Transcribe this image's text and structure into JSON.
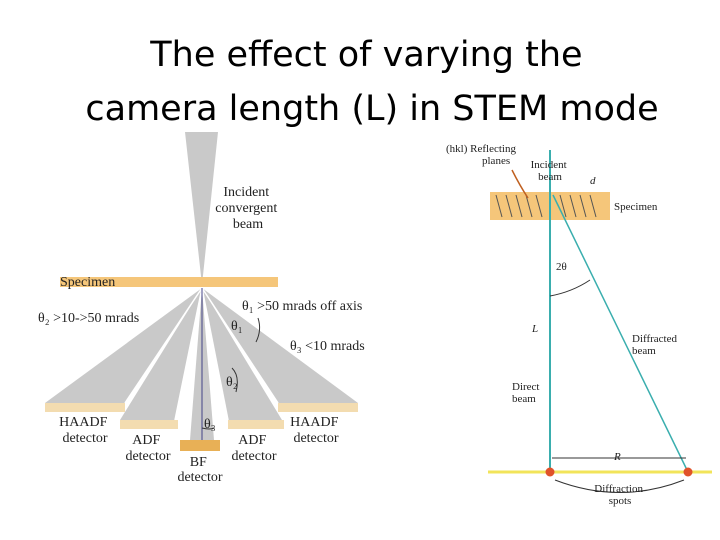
{
  "title": [
    "The effect of varying the",
    "camera length (L) in STEM mode"
  ],
  "left_diagram": {
    "incident_beam": [
      "Incident",
      "convergent",
      "beam"
    ],
    "specimen": "Specimen",
    "theta1_note": "θ₁ >50 mrads off axis",
    "theta2_note": "θ₂ >10->50 mrads",
    "theta3_note": "θ₃ <10 mrads",
    "theta1": "θ₁",
    "theta2": "θ₂",
    "theta3": "θ₃",
    "haadf_left": [
      "HAADF",
      "detector"
    ],
    "adf_left": [
      "ADF",
      "detector"
    ],
    "bf": [
      "BF",
      "detector"
    ],
    "adf_right": [
      "ADF",
      "detector"
    ],
    "haadf_right": [
      "HAADF",
      "detector"
    ]
  },
  "right_diagram": {
    "reflecting_planes": [
      "(hkl) Reflecting",
      "planes"
    ],
    "incident_beam": [
      "Incident",
      "beam"
    ],
    "d": "d",
    "specimen": "Specimen",
    "two_theta": "2θ",
    "camera_length": "L",
    "diffracted_beam": [
      "Diffracted",
      "beam"
    ],
    "direct_beam": [
      "Direct",
      "beam"
    ],
    "r": "R",
    "diffraction_spots": [
      "Diffraction",
      "spots"
    ]
  }
}
